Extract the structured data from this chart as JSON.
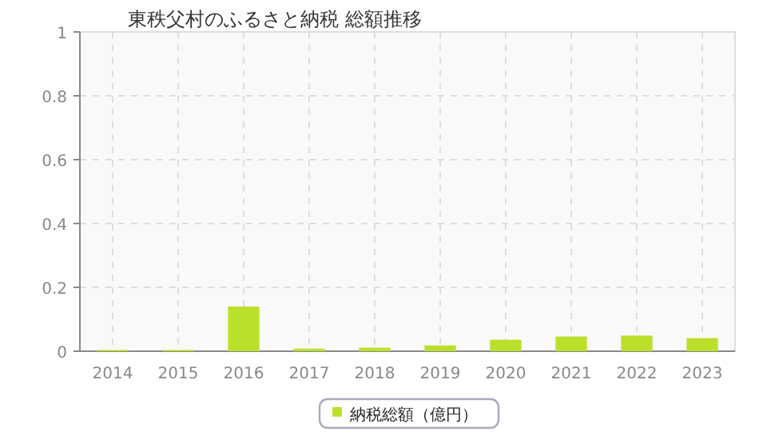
{
  "chart_data": {
    "type": "bar",
    "title": "東秩父村のふるさと納税  総額推移",
    "categories": [
      "2014",
      "2015",
      "2016",
      "2017",
      "2018",
      "2019",
      "2020",
      "2021",
      "2022",
      "2023"
    ],
    "series": [
      {
        "name": "納税総額（億円）",
        "color": "#bbe02c",
        "values": [
          0.004,
          0.004,
          0.14,
          0.008,
          0.011,
          0.018,
          0.036,
          0.046,
          0.049,
          0.041
        ]
      }
    ],
    "ylim": [
      0,
      1
    ],
    "yticks": [
      0,
      0.2,
      0.4,
      0.6,
      0.8,
      1
    ],
    "grid": true,
    "legend": "bottom"
  }
}
